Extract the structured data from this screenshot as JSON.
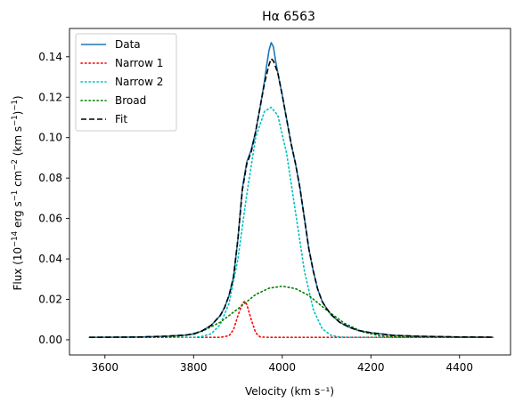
{
  "chart_data": {
    "type": "line",
    "title": "Hα 6563",
    "xlabel": "Velocity (km s⁻¹)",
    "ylabel_parts": [
      "Flux (10",
      "−14",
      " erg s",
      "−1",
      " cm",
      "−2",
      " (km s",
      "−1",
      ")",
      "−1",
      ")"
    ],
    "xlim": [
      3520,
      4515
    ],
    "ylim": [
      -0.0075,
      0.154
    ],
    "xticks": [
      3600,
      3800,
      4000,
      4200,
      4400
    ],
    "yticks": [
      0.0,
      0.02,
      0.04,
      0.06,
      0.08,
      0.1,
      0.12,
      0.14
    ],
    "xtick_labels": [
      "3600",
      "3800",
      "4000",
      "4200",
      "4400"
    ],
    "ytick_labels": [
      "0.00",
      "0.02",
      "0.04",
      "0.06",
      "0.08",
      "0.10",
      "0.12",
      "0.14"
    ],
    "grid": false,
    "legend_position": "top-left",
    "series": [
      {
        "name": "Data",
        "color": "#1f77b4",
        "style": "solid",
        "x": [
          3565,
          3620,
          3680,
          3740,
          3780,
          3800,
          3820,
          3840,
          3860,
          3870,
          3880,
          3890,
          3900,
          3910,
          3920,
          3930,
          3940,
          3950,
          3960,
          3965,
          3970,
          3975,
          3980,
          3985,
          3990,
          4000,
          4010,
          4020,
          4030,
          4040,
          4050,
          4060,
          4070,
          4080,
          4090,
          4100,
          4110,
          4120,
          4130,
          4150,
          4170,
          4200,
          4250,
          4300,
          4400,
          4475
        ],
        "y": [
          0.0012,
          0.0013,
          0.0014,
          0.0018,
          0.0023,
          0.0028,
          0.0045,
          0.0072,
          0.012,
          0.016,
          0.022,
          0.031,
          0.05,
          0.075,
          0.088,
          0.094,
          0.103,
          0.115,
          0.128,
          0.136,
          0.143,
          0.147,
          0.145,
          0.138,
          0.132,
          0.121,
          0.109,
          0.097,
          0.087,
          0.075,
          0.06,
          0.045,
          0.034,
          0.025,
          0.019,
          0.0155,
          0.0125,
          0.0105,
          0.0086,
          0.0063,
          0.0047,
          0.0035,
          0.0022,
          0.0018,
          0.0014,
          0.0013
        ]
      },
      {
        "name": "Narrow 1",
        "color": "#ff0000",
        "style": "dotted",
        "x": [
          3565,
          3860,
          3880,
          3890,
          3900,
          3910,
          3915,
          3920,
          3930,
          3940,
          3950,
          3970,
          4475
        ],
        "y": [
          0.0012,
          0.0012,
          0.002,
          0.005,
          0.012,
          0.018,
          0.019,
          0.0175,
          0.01,
          0.0035,
          0.0014,
          0.0012,
          0.0012
        ]
      },
      {
        "name": "Narrow 2",
        "color": "#00bfbf",
        "style": "dotted",
        "x": [
          3565,
          3800,
          3820,
          3840,
          3860,
          3880,
          3900,
          3920,
          3940,
          3960,
          3975,
          3990,
          4010,
          4030,
          4050,
          4070,
          4090,
          4110,
          4130,
          4150,
          4475
        ],
        "y": [
          0.0012,
          0.0012,
          0.0017,
          0.003,
          0.0075,
          0.018,
          0.04,
          0.072,
          0.1,
          0.113,
          0.115,
          0.111,
          0.092,
          0.063,
          0.034,
          0.015,
          0.0055,
          0.0022,
          0.0014,
          0.0012,
          0.0012
        ]
      },
      {
        "name": "Broad",
        "color": "#008000",
        "style": "dotted",
        "x": [
          3565,
          3740,
          3780,
          3820,
          3860,
          3900,
          3940,
          3970,
          4000,
          4030,
          4060,
          4100,
          4140,
          4180,
          4220,
          4260,
          4475
        ],
        "y": [
          0.0012,
          0.0013,
          0.0021,
          0.0043,
          0.0087,
          0.0153,
          0.0224,
          0.0255,
          0.0265,
          0.0253,
          0.0219,
          0.0147,
          0.0082,
          0.004,
          0.002,
          0.0014,
          0.0012
        ]
      },
      {
        "name": "Fit",
        "color": "#000000",
        "style": "dashed",
        "x": [
          3565,
          3620,
          3680,
          3740,
          3780,
          3800,
          3820,
          3840,
          3860,
          3870,
          3880,
          3890,
          3900,
          3910,
          3920,
          3930,
          3940,
          3950,
          3960,
          3970,
          3975,
          3980,
          3990,
          4000,
          4010,
          4020,
          4030,
          4040,
          4050,
          4060,
          4070,
          4080,
          4090,
          4100,
          4110,
          4120,
          4130,
          4150,
          4170,
          4200,
          4250,
          4300,
          4400,
          4475
        ],
        "y": [
          0.0012,
          0.0013,
          0.0014,
          0.0018,
          0.0023,
          0.0028,
          0.0045,
          0.0072,
          0.012,
          0.016,
          0.022,
          0.031,
          0.05,
          0.074,
          0.087,
          0.093,
          0.103,
          0.115,
          0.127,
          0.136,
          0.139,
          0.138,
          0.132,
          0.121,
          0.109,
          0.097,
          0.087,
          0.075,
          0.06,
          0.045,
          0.034,
          0.025,
          0.019,
          0.0155,
          0.0125,
          0.0105,
          0.0086,
          0.0063,
          0.0047,
          0.0035,
          0.0022,
          0.0018,
          0.0014,
          0.0013
        ]
      }
    ]
  }
}
